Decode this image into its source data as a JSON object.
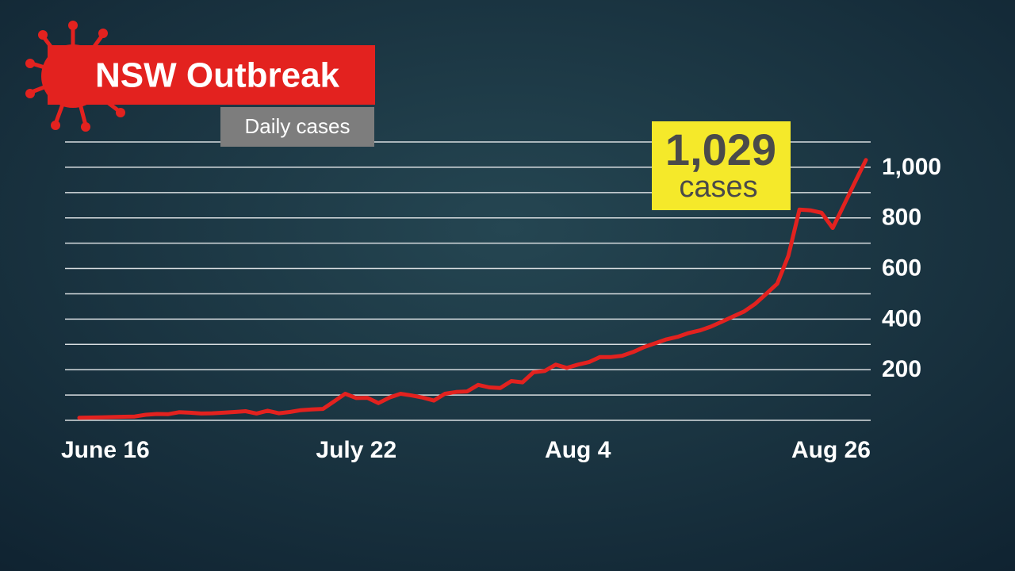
{
  "chart_data": {
    "type": "line",
    "title": "NSW Outbreak",
    "subtitle": "Daily cases",
    "annotations": [
      "1,029",
      "cases"
    ],
    "categories": [
      "June 16",
      null,
      null,
      null,
      null,
      null,
      null,
      null,
      null,
      null,
      null,
      null,
      null,
      null,
      null,
      null,
      null,
      null,
      null,
      null,
      null,
      null,
      null,
      null,
      null,
      "July 22",
      null,
      null,
      null,
      null,
      null,
      null,
      null,
      null,
      null,
      null,
      null,
      null,
      null,
      null,
      null,
      null,
      null,
      null,
      null,
      "Aug 4",
      null,
      null,
      null,
      null,
      null,
      null,
      null,
      null,
      null,
      null,
      null,
      null,
      null,
      null,
      null,
      null,
      null,
      null,
      null,
      null,
      null,
      null,
      null,
      null,
      null,
      "Aug 26"
    ],
    "series": [
      {
        "name": "Daily cases",
        "color": "#e3221f",
        "values": [
          10,
          11,
          12,
          13,
          14,
          15,
          22,
          25,
          24,
          32,
          30,
          27,
          28,
          30,
          33,
          36,
          27,
          38,
          28,
          33,
          40,
          43,
          45,
          75,
          105,
          88,
          89,
          68,
          90,
          105,
          98,
          90,
          78,
          105,
          112,
          114,
          140,
          130,
          128,
          155,
          150,
          190,
          195,
          220,
          207,
          220,
          230,
          250,
          250,
          255,
          270,
          290,
          305,
          320,
          330,
          345,
          355,
          370,
          390,
          410,
          430,
          460,
          500,
          540,
          650,
          833,
          830,
          820,
          760,
          850,
          940,
          1029
        ]
      }
    ],
    "ylim": [
      0,
      1100
    ],
    "yticks": [
      200,
      400,
      600,
      800,
      {
        "value": 1000,
        "label": "1,000"
      }
    ],
    "ygrid": [
      0,
      100,
      200,
      300,
      400,
      500,
      600,
      700,
      800,
      900,
      1000,
      1100
    ],
    "grid": true
  }
}
